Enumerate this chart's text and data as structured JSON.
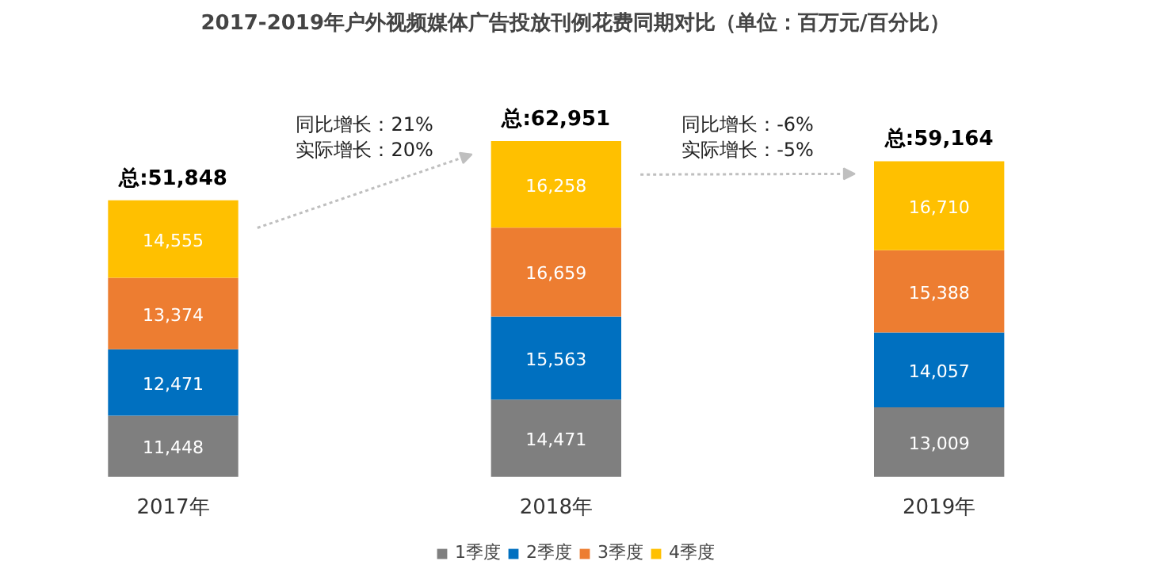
{
  "chart_data": {
    "type": "bar",
    "title": "2017-2019年户外视频媒体广告投放刊例花费同期对比（单位：百万元/百分比）",
    "categories": [
      "2017年",
      "2018年",
      "2019年"
    ],
    "stacked": true,
    "legend": "bottom",
    "grid": false,
    "series": [
      {
        "name": "1季度",
        "color": "#7f7f7f",
        "values": [
          11448,
          14471,
          13009
        ],
        "value_labels": [
          "11,448",
          "14,471",
          "13,009"
        ]
      },
      {
        "name": "2季度",
        "color": "#0070c0",
        "values": [
          12471,
          15563,
          14057
        ],
        "value_labels": [
          "12,471",
          "15,563",
          "14,057"
        ]
      },
      {
        "name": "3季度",
        "color": "#ed7d31",
        "values": [
          13374,
          16659,
          15388
        ],
        "value_labels": [
          "13,374",
          "16,659",
          "15,388"
        ]
      },
      {
        "name": "4季度",
        "color": "#ffc000",
        "values": [
          14555,
          16258,
          16710
        ],
        "value_labels": [
          "14,555",
          "16,258",
          "16,710"
        ]
      }
    ],
    "totals": [
      "总:51,848",
      "总:62,951",
      "总:59,164"
    ],
    "annotations": [
      "同比增长：21%",
      "实际增长：20%",
      "同比增长：-6%",
      "实际增长：-5%"
    ]
  }
}
